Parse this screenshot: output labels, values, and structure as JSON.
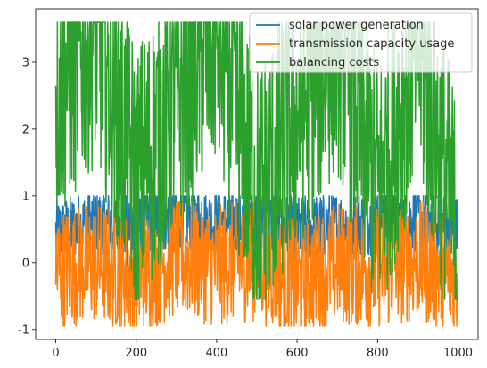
{
  "chart_data": {
    "type": "line",
    "title": "",
    "xlabel": "",
    "ylabel": "",
    "xlim": [
      -50,
      1050
    ],
    "ylim": [
      -1.15,
      3.8
    ],
    "xticks": [
      0,
      200,
      400,
      600,
      800,
      1000
    ],
    "yticks": [
      -1,
      0,
      1,
      2,
      3
    ],
    "grid": false,
    "legend_position": "top-right",
    "n_points": 1000,
    "series": [
      {
        "name": "solar power generation",
        "color": "#1f77b4",
        "approx_range": [
          0.0,
          1.0
        ],
        "x": [
          0,
          100,
          200,
          300,
          400,
          500,
          600,
          700,
          800,
          900,
          999
        ],
        "values": [
          0.45,
          0.62,
          0.55,
          0.7,
          0.6,
          0.65,
          0.5,
          0.58,
          0.62,
          0.66,
          0.5
        ]
      },
      {
        "name": "transmission capacity usage",
        "color": "#ff7f0e",
        "approx_range": [
          -0.95,
          0.9
        ],
        "x": [
          0,
          100,
          200,
          300,
          400,
          500,
          600,
          700,
          800,
          900,
          999
        ],
        "values": [
          -0.1,
          0.0,
          -0.2,
          0.1,
          -0.05,
          0.05,
          -0.3,
          0.0,
          -0.1,
          0.05,
          -0.25
        ]
      },
      {
        "name": "balancing costs",
        "color": "#2ca02c",
        "approx_range": [
          -0.55,
          3.6
        ],
        "x": [
          0,
          100,
          200,
          300,
          400,
          500,
          600,
          700,
          800,
          900,
          999
        ],
        "values": [
          2.55,
          3.55,
          1.2,
          2.5,
          3.45,
          1.0,
          2.2,
          3.4,
          1.1,
          3.3,
          0.4
        ]
      }
    ]
  }
}
